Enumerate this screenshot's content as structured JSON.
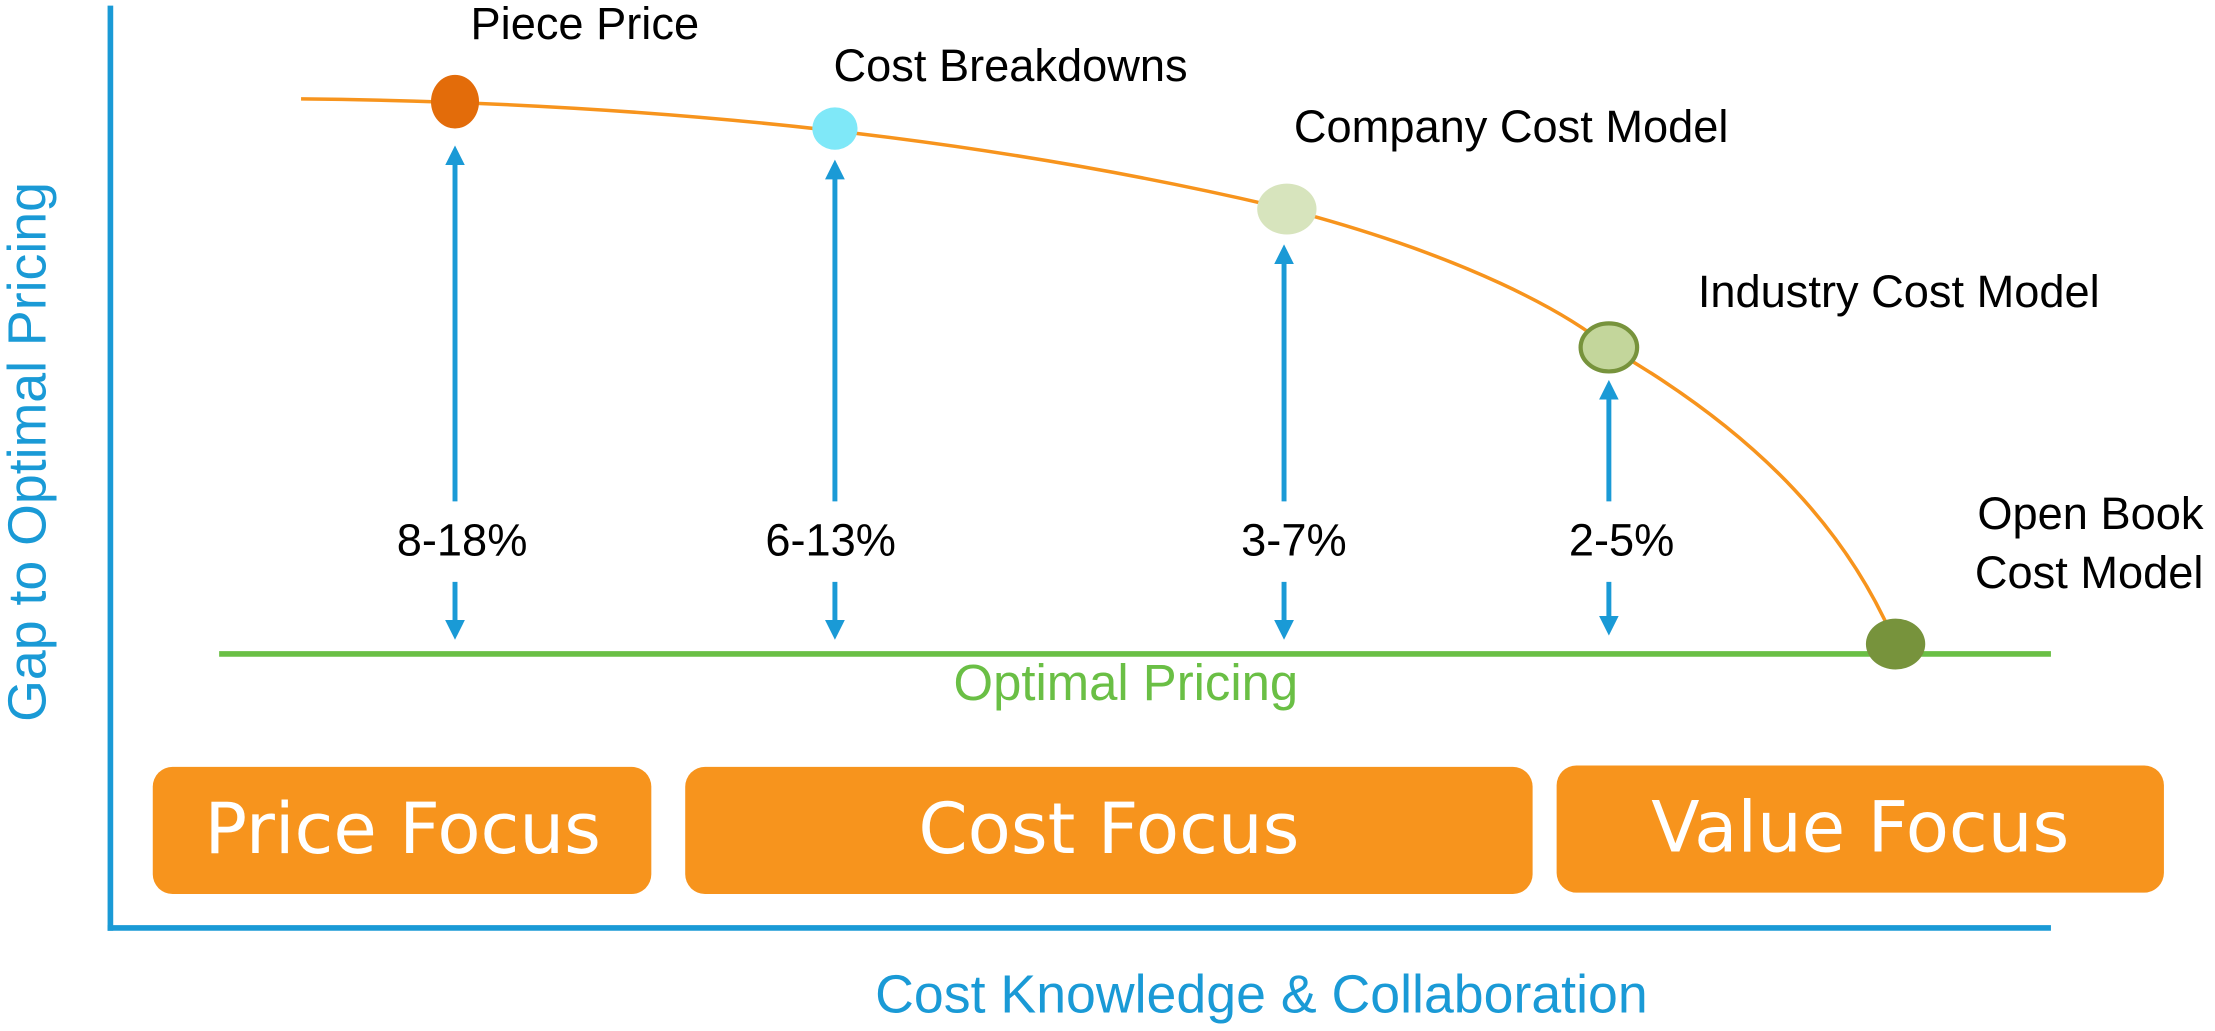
{
  "y_axis_label": "Gap to Optimal Pricing",
  "x_axis_label": "Cost Knowledge & Collaboration",
  "baseline_label": "Optimal Pricing",
  "stages": [
    {
      "label": "Piece Price",
      "range": "8-18%"
    },
    {
      "label": "Cost Breakdowns",
      "range": "6-13%"
    },
    {
      "label": "Company Cost Model",
      "range": "3-7%"
    },
    {
      "label": "Industry Cost Model",
      "range": "2-5%"
    }
  ],
  "final_stage": {
    "lines": [
      "Open Book",
      "Cost Model"
    ]
  },
  "focus_areas": [
    "Price Focus",
    "Cost Focus",
    "Value Focus"
  ]
}
